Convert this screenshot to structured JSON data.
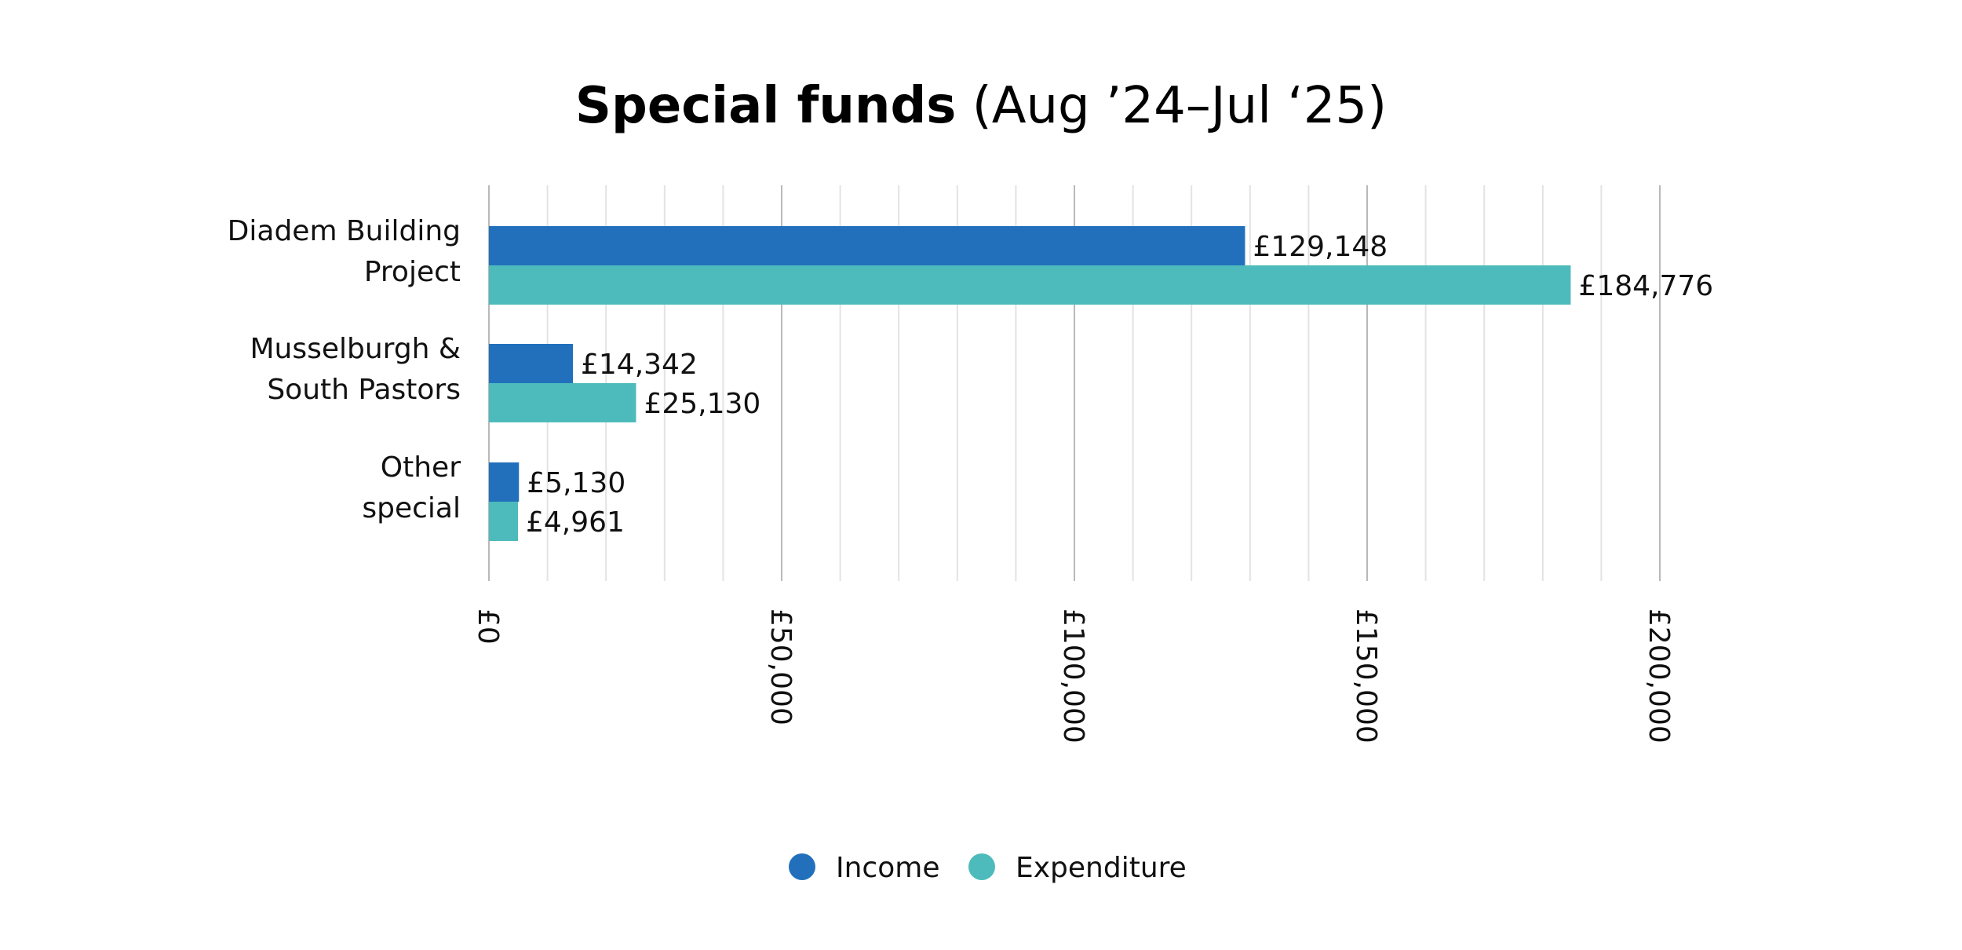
{
  "chart_data": {
    "type": "bar",
    "orientation": "horizontal",
    "title_main": "Special funds",
    "title_sub": "(Aug ’24–Jul ‘25)",
    "categories": [
      [
        "Diadem Building",
        "Project"
      ],
      [
        "Musselburgh &",
        "South Pastors"
      ],
      [
        "Other",
        "special"
      ]
    ],
    "series": [
      {
        "name": "Income",
        "color": "#2270BC",
        "values": [
          129148,
          14342,
          5130
        ],
        "labels": [
          "£129,148",
          "£14,342",
          "£5,130"
        ]
      },
      {
        "name": "Expenditure",
        "color": "#4DBBBC",
        "values": [
          184776,
          25130,
          4961
        ],
        "labels": [
          "£184,776",
          "£25,130",
          "£4,961"
        ]
      }
    ],
    "xlim": [
      0,
      200000
    ],
    "x_ticks": [
      0,
      50000,
      100000,
      150000,
      200000
    ],
    "x_tick_labels": [
      "£0",
      "£50,000",
      "£100,000",
      "£150,000",
      "£200,000"
    ],
    "minor_grid_step": 10000,
    "grid": true,
    "legend_position": "bottom"
  }
}
